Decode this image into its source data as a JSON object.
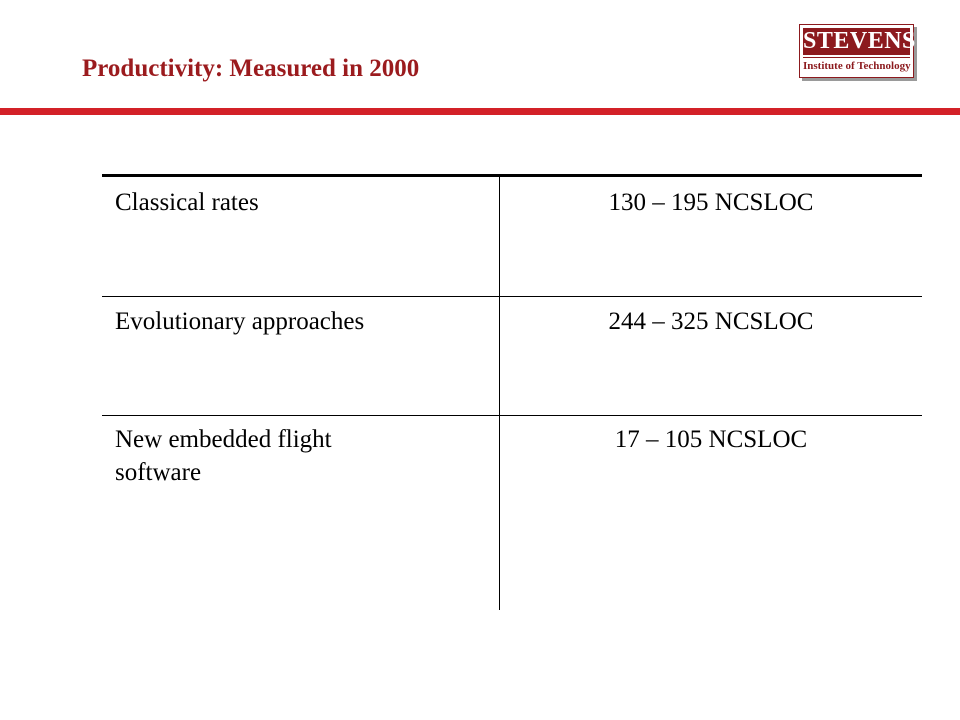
{
  "slide": {
    "title": "Productivity:  Measured in 2000"
  },
  "logo": {
    "name": "STEVENS",
    "subtitle": "Institute of Technology"
  },
  "table": {
    "rows": [
      {
        "label": "Classical rates",
        "value": "130 – 195 NCSLOC"
      },
      {
        "label": "Evolutionary approaches",
        "value": "244 – 325 NCSLOC"
      },
      {
        "label": "New embedded flight software",
        "value": "17 – 105 NCSLOC"
      }
    ]
  },
  "colors": {
    "title": "#9b1b1e",
    "rule": "#d32128",
    "logo": "#8c1a1e"
  }
}
